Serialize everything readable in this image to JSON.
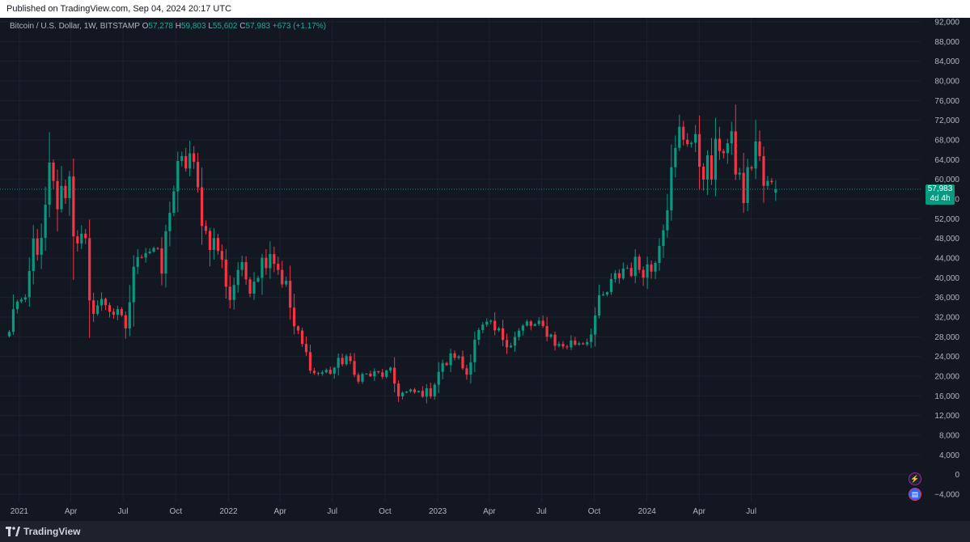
{
  "header": {
    "published": "Published on TradingView.com, Sep 04, 2024 20:17 UTC"
  },
  "legend": {
    "symbol": "Bitcoin / U.S. Dollar, 1W, BITSTAMP",
    "o_label": "O",
    "o_value": "57,278",
    "h_label": "H",
    "h_value": "59,803",
    "l_label": "L",
    "l_value": "55,602",
    "c_label": "C",
    "c_value": "57,983",
    "change": "+673 (+1.17%)"
  },
  "price_tag": {
    "price": "57,983",
    "countdown": "4d 4h"
  },
  "footer": {
    "brand": "TradingView"
  },
  "icons": {
    "alert": "lightning-icon",
    "events": "us-flag-icon"
  },
  "colors": {
    "up": "#089981",
    "down": "#f23645",
    "background": "#131722",
    "grid": "#1e222d",
    "axis_text": "#b2b5be"
  },
  "chart_data": {
    "type": "candlestick",
    "title": "",
    "xlabel": "",
    "ylabel": "",
    "ylim": [
      -4000,
      92000
    ],
    "y_ticks": [
      -4000,
      0,
      4000,
      8000,
      12000,
      16000,
      20000,
      24000,
      28000,
      32000,
      36000,
      40000,
      44000,
      48000,
      52000,
      56000,
      60000,
      64000,
      68000,
      72000,
      76000,
      80000,
      84000,
      88000,
      92000
    ],
    "y_tick_labels": [
      "−4,000",
      "0",
      "4,000",
      "8,000",
      "12,000",
      "16,000",
      "20,000",
      "24,000",
      "28,000",
      "32,000",
      "36,000",
      "40,000",
      "44,000",
      "48,000",
      "52,000",
      "56,000",
      "60,000",
      "64,000",
      "68,000",
      "72,000",
      "76,000",
      "80,000",
      "84,000",
      "88,000",
      "92,000"
    ],
    "x_ticks": [
      "2021",
      "Apr",
      "Jul",
      "Oct",
      "2022",
      "Apr",
      "Jul",
      "Oct",
      "2023",
      "Apr",
      "Jul",
      "Oct",
      "2024",
      "Apr",
      "Jul"
    ],
    "last_price": 57983,
    "grid": true,
    "waypoints": [
      [
        "2020-12-28",
        29000
      ],
      [
        "2021-01-04",
        33000
      ],
      [
        "2021-01-11",
        36000
      ],
      [
        "2021-01-25",
        34000
      ],
      [
        "2021-02-08",
        47000
      ],
      [
        "2021-02-22",
        46000
      ],
      [
        "2021-03-08",
        61000
      ],
      [
        "2021-03-22",
        55000
      ],
      [
        "2021-04-12",
        60000
      ],
      [
        "2021-04-19",
        50000
      ],
      [
        "2021-05-10",
        46000
      ],
      [
        "2021-05-17",
        34000
      ],
      [
        "2021-06-14",
        35000
      ],
      [
        "2021-07-19",
        30000
      ],
      [
        "2021-08-09",
        46000
      ],
      [
        "2021-09-06",
        46000
      ],
      [
        "2021-09-20",
        41000
      ],
      [
        "2021-10-04",
        55000
      ],
      [
        "2021-10-18",
        61000
      ],
      [
        "2021-11-08",
        65000
      ],
      [
        "2021-11-22",
        57000
      ],
      [
        "2021-12-06",
        49000
      ],
      [
        "2021-12-27",
        46000
      ],
      [
        "2022-01-17",
        36000
      ],
      [
        "2022-01-31",
        42000
      ],
      [
        "2022-02-21",
        39000
      ],
      [
        "2022-03-28",
        46000
      ],
      [
        "2022-04-25",
        38000
      ],
      [
        "2022-05-09",
        30000
      ],
      [
        "2022-06-13",
        20500
      ],
      [
        "2022-07-11",
        21000
      ],
      [
        "2022-08-08",
        24000
      ],
      [
        "2022-08-22",
        20000
      ],
      [
        "2022-10-24",
        20500
      ],
      [
        "2022-11-07",
        16500
      ],
      [
        "2023-01-02",
        16700
      ],
      [
        "2023-01-16",
        21000
      ],
      [
        "2023-02-13",
        24500
      ],
      [
        "2023-03-06",
        20500
      ],
      [
        "2023-03-20",
        28000
      ],
      [
        "2023-04-10",
        30000
      ],
      [
        "2023-05-22",
        27000
      ],
      [
        "2023-06-19",
        30500
      ],
      [
        "2023-07-24",
        29300
      ],
      [
        "2023-08-14",
        26000
      ],
      [
        "2023-10-02",
        27500
      ],
      [
        "2023-10-23",
        34500
      ],
      [
        "2023-12-04",
        42000
      ],
      [
        "2024-01-08",
        42500
      ],
      [
        "2024-01-22",
        41800
      ],
      [
        "2024-02-12",
        52000
      ],
      [
        "2024-03-11",
        69000
      ],
      [
        "2024-03-25",
        69500
      ],
      [
        "2024-04-15",
        64000
      ],
      [
        "2024-05-06",
        61000
      ],
      [
        "2024-05-20",
        68000
      ],
      [
        "2024-06-10",
        66000
      ],
      [
        "2024-07-01",
        56500
      ],
      [
        "2024-07-22",
        67500
      ],
      [
        "2024-08-05",
        58500
      ],
      [
        "2024-08-26",
        57983
      ]
    ]
  }
}
